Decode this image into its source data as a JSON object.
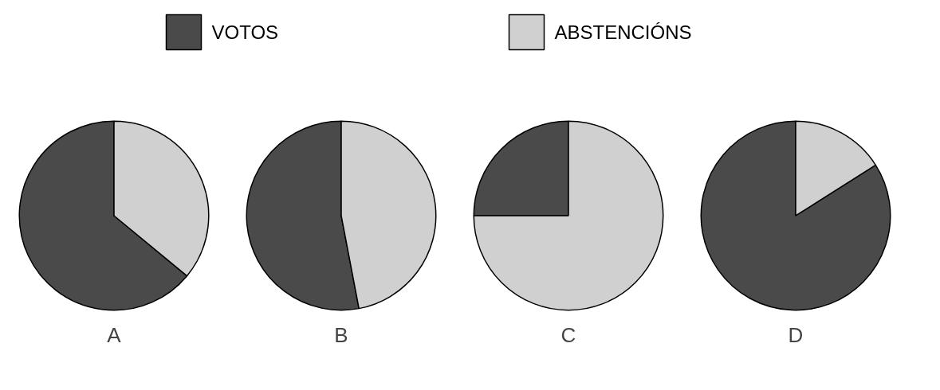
{
  "chart_data": [
    {
      "type": "pie",
      "title": "A",
      "categories": [
        "VOTOS",
        "ABSTENCIÓNS"
      ],
      "values": [
        64,
        36
      ],
      "colors": [
        "#4a4a4a",
        "#d0d0d0"
      ],
      "legend": "top"
    },
    {
      "type": "pie",
      "title": "B",
      "categories": [
        null,
        null
      ],
      "values": [
        53,
        47
      ],
      "colors": [
        "#4a4a4a",
        "#d0d0d0"
      ]
    },
    {
      "type": "pie",
      "title": "C",
      "categories": [
        null,
        null
      ],
      "values": [
        25,
        75
      ],
      "colors": [
        "#4a4a4a",
        "#d0d0d0"
      ]
    },
    {
      "type": "pie",
      "title": "D",
      "categories": [
        null,
        null
      ],
      "values": [
        84,
        16
      ],
      "colors": [
        "#4a4a4a",
        "#d0d0d0"
      ]
    }
  ]
}
